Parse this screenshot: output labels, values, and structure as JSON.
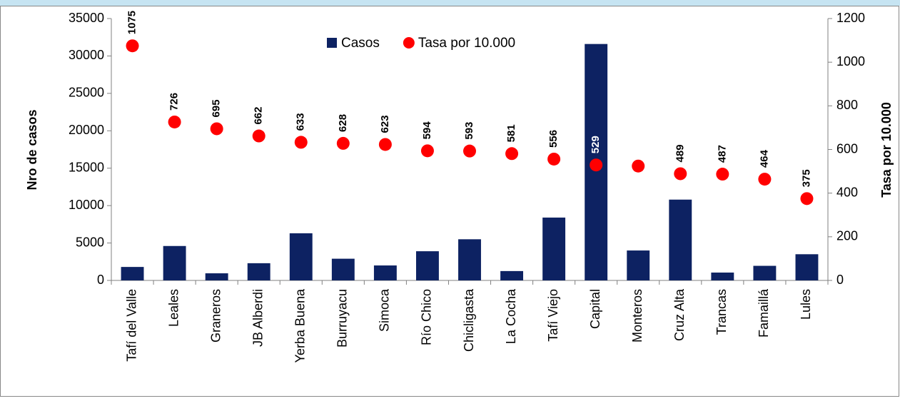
{
  "chart_data": {
    "type": "bar_line",
    "categories": [
      "Tafí del Valle",
      "Leales",
      "Graneros",
      "JB Alberdi",
      "Yerba Buena",
      "Burruyacu",
      "Simoca",
      "Río Chico",
      "Chicligasta",
      "La Cocha",
      "Tafí Viejo",
      "Capital",
      "Monteros",
      "Cruz Alta",
      "Trancas",
      "Famaillá",
      "Lules"
    ],
    "series": [
      {
        "name": "Casos",
        "color": "#0d2262",
        "type": "bar",
        "values": [
          1800,
          4600,
          950,
          2300,
          6300,
          2900,
          2000,
          3900,
          5500,
          1250,
          8400,
          31600,
          4000,
          10800,
          1050,
          1950,
          3500
        ]
      },
      {
        "name": "Tasa por 10.000",
        "color": "#ff0000",
        "type": "scatter",
        "axis": "y2",
        "values": [
          1075,
          726,
          695,
          662,
          633,
          628,
          623,
          594,
          593,
          581,
          556,
          529,
          524,
          489,
          487,
          464,
          375
        ],
        "value_labels": [
          "1075",
          "726",
          "695",
          "662",
          "633",
          "628",
          "623",
          "594",
          "593",
          "581",
          "556",
          "529",
          null,
          "489",
          "487",
          "464",
          "375"
        ]
      }
    ],
    "ylabel": "Nro de casos",
    "y2label": "Tasa por 10.000",
    "ylim": [
      0,
      35000
    ],
    "yticks": [
      0,
      5000,
      10000,
      15000,
      20000,
      25000,
      30000,
      35000
    ],
    "y2lim": [
      0,
      1200
    ],
    "y2ticks": [
      0,
      200,
      400,
      600,
      800,
      1000,
      1200
    ],
    "legend": "top"
  }
}
